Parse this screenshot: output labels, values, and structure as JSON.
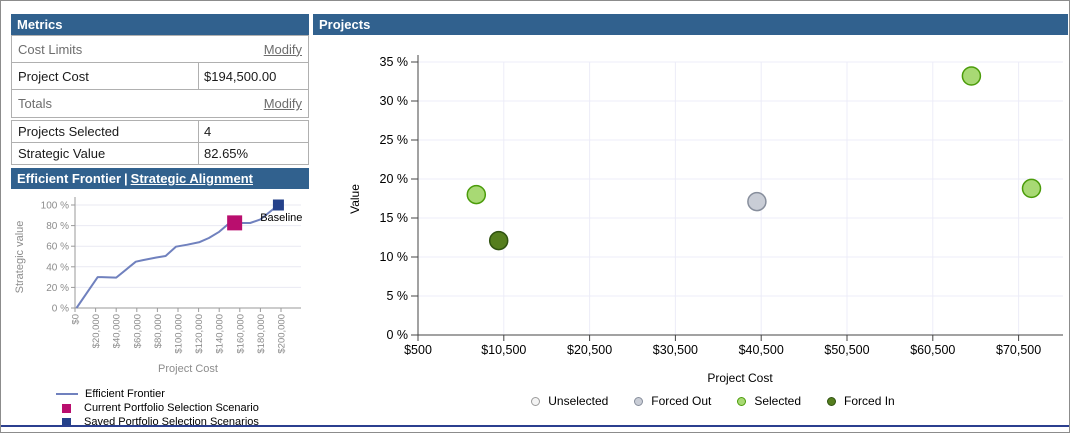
{
  "metrics": {
    "title": "Metrics",
    "rows": [
      {
        "label": "Cost Limits",
        "action": "Modify"
      },
      {
        "label": "Project Cost",
        "value": "$194,500.00"
      },
      {
        "label": "Totals",
        "action": "Modify"
      },
      {
        "label": "Projects Selected",
        "value": "4"
      },
      {
        "label": "Strategic Value",
        "value": "82.65%"
      }
    ]
  },
  "frontier_header": {
    "left": "Efficient Frontier",
    "divider": "|",
    "right": "Strategic Alignment"
  },
  "projects_header": {
    "title": "Projects"
  },
  "annotations": {
    "baseline_label": "Baseline"
  },
  "colors": {
    "header_bg": "#31618e",
    "table_border": "#b0b0b0",
    "bottom_bar": "#2b3f8f",
    "grid_line_small": "#e9e9f2",
    "grid_line_large": "#ececf8",
    "axis_gray": "#9a9a9a",
    "axis_black": "#444444",
    "small_text": "#8c8c8c"
  },
  "chart_data": [
    {
      "type": "line",
      "title": "Efficient Frontier | Strategic Alignment",
      "xlabel": "Project Cost",
      "ylabel": "Strategic value",
      "xlim": [
        0,
        220000
      ],
      "ylim": [
        0,
        100
      ],
      "grid": "horizontal",
      "legend_position": "bottom-left",
      "x_ticks": [
        {
          "v": 0,
          "label": "$0"
        },
        {
          "v": 20000,
          "label": "$20,000"
        },
        {
          "v": 40000,
          "label": "$40,000"
        },
        {
          "v": 60000,
          "label": "$60,000"
        },
        {
          "v": 80000,
          "label": "$80,000"
        },
        {
          "v": 100000,
          "label": "$100,000"
        },
        {
          "v": 120000,
          "label": "$120,000"
        },
        {
          "v": 140000,
          "label": "$140,000"
        },
        {
          "v": 160000,
          "label": "$160,000"
        },
        {
          "v": 180000,
          "label": "$180,000"
        },
        {
          "v": 200000,
          "label": "$200,000"
        }
      ],
      "y_ticks": [
        {
          "v": 0,
          "label": "0 %"
        },
        {
          "v": 20,
          "label": "20 %"
        },
        {
          "v": 40,
          "label": "40 %"
        },
        {
          "v": 60,
          "label": "60 %"
        },
        {
          "v": 80,
          "label": "80 %"
        },
        {
          "v": 100,
          "label": "100 %"
        }
      ],
      "series": [
        {
          "name": "Efficient Frontier",
          "kind": "line",
          "color": "#7081be",
          "points": [
            [
              1500,
              0
            ],
            [
              22000,
              30
            ],
            [
              26000,
              30
            ],
            [
              40000,
              29.5
            ],
            [
              59000,
              45
            ],
            [
              66000,
              46.5
            ],
            [
              79000,
              49
            ],
            [
              88000,
              50.5
            ],
            [
              98000,
              59.5
            ],
            [
              109000,
              61.5
            ],
            [
              121000,
              64
            ],
            [
              130000,
              68
            ],
            [
              140000,
              74
            ],
            [
              150000,
              82.5
            ],
            [
              170000,
              82.5
            ],
            [
              180000,
              86
            ],
            [
              197500,
              100
            ]
          ]
        },
        {
          "name": "Current Portfolio Selection Scenario",
          "kind": "square",
          "color": "#b90e6e",
          "size": 15,
          "points": [
            [
              155000,
              82.65
            ]
          ]
        },
        {
          "name": "Saved Portfolio Selection Scenarios",
          "kind": "square",
          "color": "#24418a",
          "size": 11,
          "points": [
            [
              197500,
              100
            ]
          ],
          "annotation": "Baseline"
        }
      ]
    },
    {
      "type": "scatter",
      "title": "Projects",
      "xlabel": "Project Cost",
      "ylabel": "Value",
      "xlim": [
        500,
        75500
      ],
      "ylim": [
        0,
        35
      ],
      "grid": "both",
      "legend_position": "bottom-center",
      "marker_radius": 9,
      "x_ticks": [
        {
          "v": 500,
          "label": "$500"
        },
        {
          "v": 10500,
          "label": "$10,500"
        },
        {
          "v": 20500,
          "label": "$20,500"
        },
        {
          "v": 30500,
          "label": "$30,500"
        },
        {
          "v": 40500,
          "label": "$40,500"
        },
        {
          "v": 50500,
          "label": "$50,500"
        },
        {
          "v": 60500,
          "label": "$60,500"
        },
        {
          "v": 70500,
          "label": "$70,500"
        }
      ],
      "y_ticks": [
        {
          "v": 0,
          "label": "0 %"
        },
        {
          "v": 5,
          "label": "5 %"
        },
        {
          "v": 10,
          "label": "10 %"
        },
        {
          "v": 15,
          "label": "15 %"
        },
        {
          "v": 20,
          "label": "20 %"
        },
        {
          "v": 25,
          "label": "25 %"
        },
        {
          "v": 30,
          "label": "30 %"
        },
        {
          "v": 35,
          "label": "35 %"
        }
      ],
      "series": [
        {
          "name": "Unselected",
          "fill": "#f4f4f4",
          "stroke": "#9b9b9b",
          "points": []
        },
        {
          "name": "Forced Out",
          "fill": "#c9cdd6",
          "stroke": "#878e9c",
          "points": [
            [
              40000,
              17.1
            ]
          ]
        },
        {
          "name": "Selected",
          "fill": "#a8d974",
          "stroke": "#4b9c0a",
          "points": [
            [
              7300,
              18
            ],
            [
              65000,
              33.2
            ],
            [
              72000,
              18.8
            ]
          ]
        },
        {
          "name": "Forced In",
          "fill": "#557e1e",
          "stroke": "#2f5210",
          "points": [
            [
              9900,
              12.1
            ]
          ]
        }
      ]
    }
  ]
}
